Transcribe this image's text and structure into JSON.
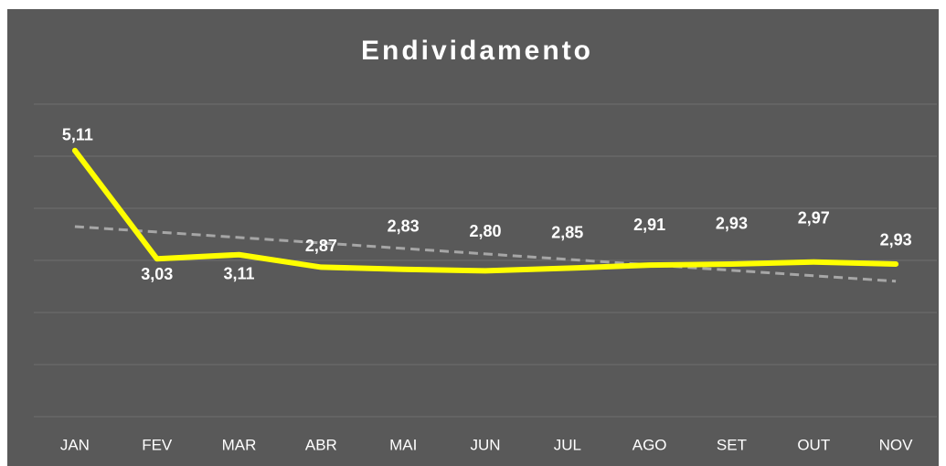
{
  "chart_data": {
    "type": "line",
    "title": "Endividamento",
    "categories": [
      "JAN",
      "FEV",
      "MAR",
      "ABR",
      "MAI",
      "JUN",
      "JUL",
      "AGO",
      "SET",
      "OUT",
      "NOV"
    ],
    "series": [
      {
        "color": "#ffff00",
        "values": [
          5.11,
          3.03,
          3.11,
          2.87,
          2.83,
          2.8,
          2.85,
          2.91,
          2.93,
          2.97,
          2.93
        ],
        "value_labels": [
          "5,11",
          "3,03",
          "3,11",
          "2,87",
          "2,83",
          "2,80",
          "2,85",
          "2,91",
          "2,93",
          "2,97",
          "2,93"
        ]
      }
    ],
    "trendline": {
      "color": "#a6a6a6",
      "values": [
        3.65,
        2.6
      ]
    },
    "ylim": [
      0,
      6
    ],
    "yticks": [
      0,
      1,
      2,
      3,
      4,
      5,
      6
    ],
    "grid": true
  }
}
